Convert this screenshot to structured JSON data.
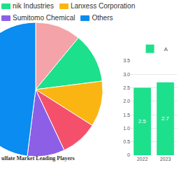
{
  "chart_data": [
    {
      "type": "pie",
      "title": "ulfate Market Leading Players",
      "categories": [
        null,
        "nik Industries",
        "Lanxess Corporation",
        null,
        "Sumitomo Chemical",
        "Others"
      ],
      "values": [
        11,
        12,
        11,
        9,
        9,
        48
      ],
      "colors": [
        "#f4a3a8",
        "#1de08c",
        "#fbb512",
        "#f4506b",
        "#8c5fe6",
        "#0a8cf0"
      ],
      "legend": "top"
    },
    {
      "type": "bar",
      "categories": [
        "2022",
        "2023"
      ],
      "series": [
        {
          "name": "A",
          "color": "#1de08c",
          "values": [
            2.5,
            2.7
          ]
        }
      ],
      "ylim": [
        0,
        3.5
      ],
      "yticks": [
        0,
        0.5,
        {
          "value": 1,
          "label": "1.0"
        },
        1.5,
        {
          "value": 2,
          "label": "2.0"
        },
        2.5,
        {
          "value": 3,
          "label": "3.0"
        },
        3.5
      ],
      "grid": true,
      "data_labels": true,
      "legend": "top"
    }
  ]
}
